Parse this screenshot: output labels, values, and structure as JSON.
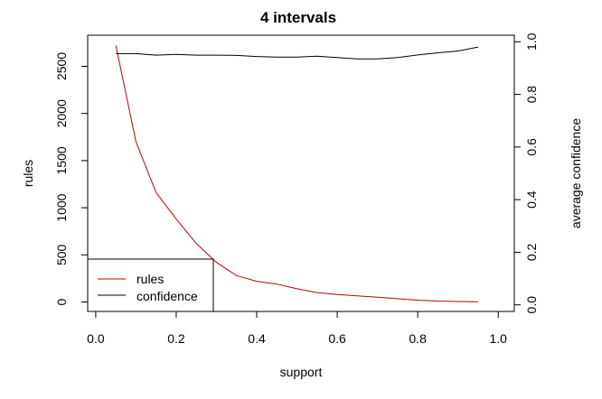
{
  "chart_data": {
    "type": "line",
    "title": "4 intervals",
    "xlabel": "support",
    "ylabel": "rules",
    "y2label": "average confidence",
    "xlim": [
      -0.02,
      1.04
    ],
    "ylim": [
      -100,
      2830
    ],
    "y2lim": [
      -0.025,
      1.025
    ],
    "xticks": [
      "0.0",
      "0.2",
      "0.4",
      "0.6",
      "0.8",
      "1.0"
    ],
    "yticks": [
      "0",
      "500",
      "1000",
      "1500",
      "2000",
      "2500"
    ],
    "y2ticks": [
      "0.0",
      "0.2",
      "0.4",
      "0.6",
      "0.8",
      "1.0"
    ],
    "legend_position": "bottom-left",
    "series": [
      {
        "name": "rules",
        "axis": "left",
        "color": "#c00000",
        "x": [
          0.05,
          0.1,
          0.15,
          0.2,
          0.25,
          0.3,
          0.35,
          0.4,
          0.45,
          0.5,
          0.55,
          0.6,
          0.65,
          0.7,
          0.75,
          0.8,
          0.85,
          0.9,
          0.95
        ],
        "y": [
          2720,
          1700,
          1160,
          880,
          620,
          420,
          280,
          220,
          190,
          140,
          100,
          80,
          65,
          50,
          35,
          20,
          10,
          5,
          3
        ]
      },
      {
        "name": "confidence",
        "axis": "right",
        "color": "#000000",
        "x": [
          0.05,
          0.1,
          0.15,
          0.2,
          0.25,
          0.3,
          0.35,
          0.4,
          0.45,
          0.5,
          0.55,
          0.6,
          0.65,
          0.7,
          0.75,
          0.8,
          0.85,
          0.9,
          0.95
        ],
        "y": [
          0.955,
          0.955,
          0.949,
          0.952,
          0.949,
          0.949,
          0.948,
          0.944,
          0.942,
          0.942,
          0.945,
          0.94,
          0.935,
          0.935,
          0.94,
          0.95,
          0.958,
          0.965,
          0.98
        ]
      }
    ]
  }
}
